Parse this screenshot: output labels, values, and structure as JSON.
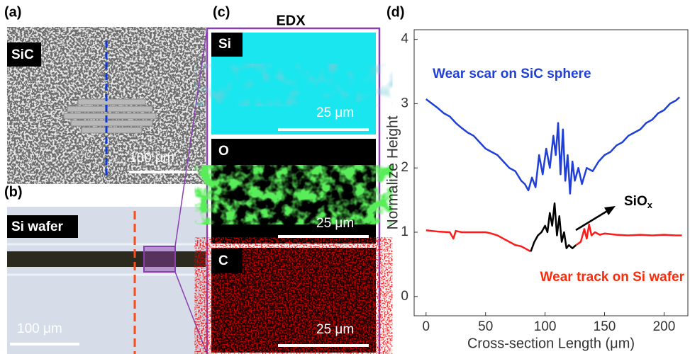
{
  "panels": {
    "a": {
      "label": "(a)",
      "tag": "SiC",
      "scale": "100 μm"
    },
    "b": {
      "label": "(b)",
      "tag": "Si wafer",
      "scale": "100 μm"
    },
    "c": {
      "label": "(c)",
      "title": "EDX",
      "maps": [
        {
          "tag": "Si",
          "scale": "25 μm"
        },
        {
          "tag": "O",
          "scale": "25 μm"
        },
        {
          "tag": "C",
          "scale": "25 μm"
        }
      ]
    },
    "d": {
      "label": "(d)"
    }
  },
  "chart_data": {
    "type": "line",
    "xlabel": "Cross-section Length (μm)",
    "ylabel": "Normalize Height",
    "xlim": [
      -10,
      220
    ],
    "ylim": [
      -0.3,
      4.15
    ],
    "xticks": [
      0,
      50,
      100,
      150,
      200
    ],
    "yticks": [
      0,
      1,
      2,
      3,
      4
    ],
    "series": [
      {
        "color": "#1f3fd6",
        "x": [
          0,
          5,
          10,
          15,
          20,
          25,
          30,
          35,
          40,
          45,
          50,
          55,
          60,
          65,
          70,
          75,
          80,
          83,
          86,
          89,
          92,
          95,
          98,
          101,
          104,
          107,
          109,
          111,
          113,
          115,
          117,
          119,
          121,
          123,
          125,
          128,
          131,
          135,
          140,
          145,
          150,
          155,
          160,
          165,
          170,
          175,
          180,
          185,
          190,
          195,
          200,
          205,
          210,
          213
        ],
        "values": [
          3.07,
          3.0,
          2.93,
          2.85,
          2.8,
          2.7,
          2.62,
          2.55,
          2.5,
          2.4,
          2.3,
          2.25,
          2.2,
          2.1,
          2.0,
          1.95,
          1.8,
          1.75,
          1.65,
          1.85,
          1.7,
          2.2,
          1.9,
          2.3,
          2.0,
          2.5,
          2.2,
          2.7,
          1.9,
          2.6,
          1.8,
          2.2,
          1.6,
          2.1,
          1.8,
          2.0,
          1.75,
          2.0,
          1.95,
          2.1,
          2.2,
          2.25,
          2.35,
          2.4,
          2.5,
          2.55,
          2.6,
          2.7,
          2.75,
          2.85,
          2.9,
          3.0,
          3.05,
          3.1
        ]
      },
      {
        "color": "#ff1a1a",
        "x": [
          0,
          10,
          20,
          23,
          25,
          30,
          40,
          50,
          55,
          60,
          65,
          70,
          75,
          80,
          84,
          88
        ],
        "values": [
          1.03,
          1.01,
          1.0,
          0.9,
          1.02,
          1.0,
          1.0,
          1.0,
          0.98,
          0.95,
          0.9,
          0.85,
          0.8,
          0.78,
          0.74,
          0.7
        ]
      },
      {
        "color": "#000000",
        "x": [
          88,
          91,
          94,
          97,
          100,
          102,
          104,
          106,
          108,
          110,
          112,
          114,
          116,
          118,
          120,
          123,
          126
        ],
        "values": [
          0.7,
          0.85,
          0.95,
          1.0,
          1.1,
          1.0,
          1.3,
          1.1,
          1.45,
          0.95,
          1.25,
          0.85,
          1.0,
          0.75,
          0.8,
          0.75,
          0.8
        ]
      },
      {
        "color": "#ff1a1a",
        "x": [
          126,
          130,
          133,
          135,
          137,
          139,
          142,
          146,
          150,
          160,
          170,
          180,
          190,
          200,
          210,
          215
        ],
        "values": [
          0.8,
          0.85,
          1.05,
          0.9,
          1.12,
          0.95,
          1.0,
          0.96,
          0.98,
          0.96,
          0.95,
          0.96,
          0.95,
          0.96,
          0.95,
          0.95
        ]
      }
    ],
    "annotations": [
      {
        "text": "Wear scar on SiC sphere",
        "color": "#1f3fd6"
      },
      {
        "text": "Wear track on Si wafer",
        "color": "#ff2a0a"
      },
      {
        "text": "SiO",
        "sub": "x",
        "color": "#000000"
      }
    ]
  }
}
